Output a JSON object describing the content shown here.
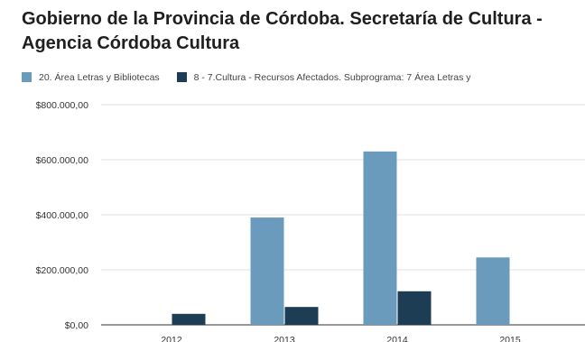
{
  "chart_data": {
    "type": "bar",
    "title": "Gobierno de la Provincia de Córdoba. Secretaría de Cultura - Agencia Córdoba Cultura",
    "categories": [
      "2012",
      "2013",
      "2014",
      "2015"
    ],
    "series": [
      {
        "name": "20. Área Letras y Bibliotecas",
        "color": "#6a9bbd",
        "values": [
          0,
          390000,
          630000,
          245000
        ]
      },
      {
        "name": "8 - 7.Cultura - Recursos Afectados. Subprograma: 7 Área Letras y",
        "color": "#1d3d54",
        "values": [
          40000,
          65000,
          122000,
          0
        ]
      }
    ],
    "y_ticks": [
      "$0,00",
      "$200.000,00",
      "$400.000,00",
      "$600.000,00",
      "$800.000,00"
    ],
    "ylim": [
      0,
      800000
    ],
    "grid": true,
    "legend_position": "top"
  }
}
